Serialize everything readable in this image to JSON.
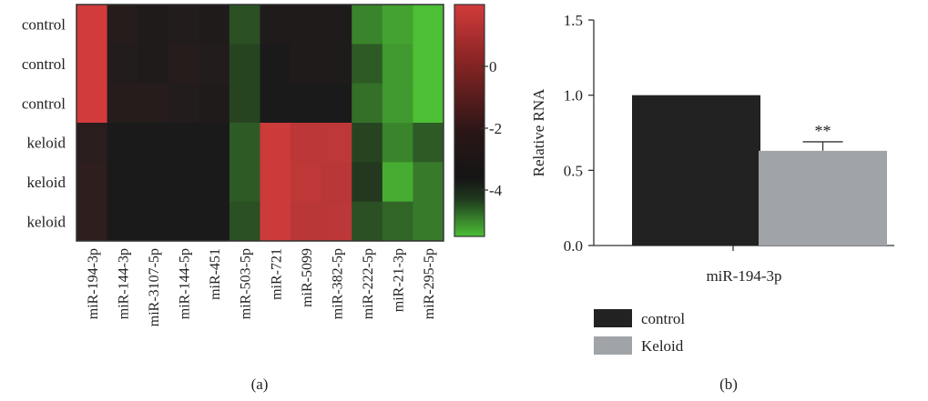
{
  "panel_labels": {
    "a": "(a)",
    "b": "(b)"
  },
  "chart_data": [
    {
      "type": "heatmap",
      "row_labels": [
        "control",
        "control",
        "control",
        "keloid",
        "keloid",
        "keloid"
      ],
      "column_labels": [
        "miR-194-3p",
        "miR-144-3p",
        "miR-3107-5p",
        "miR-144-5p",
        "miR-451",
        "miR-503-5p",
        "miR-721",
        "miR-5099",
        "miR-382-5p",
        "miR-222-5p",
        "miR-21-3p",
        "miR-295-5p"
      ],
      "values": [
        [
          2.0,
          -3.7,
          -3.9,
          -3.8,
          -3.9,
          -4.4,
          -3.9,
          -3.9,
          -3.9,
          -4.9,
          -5.2,
          -6.2
        ],
        [
          2.0,
          -3.8,
          -3.9,
          -3.7,
          -3.8,
          -4.3,
          -4.0,
          -3.9,
          -3.9,
          -4.5,
          -5.1,
          -6.3
        ],
        [
          2.0,
          -3.7,
          -3.7,
          -3.8,
          -3.9,
          -4.3,
          -4.0,
          -4.0,
          -4.0,
          -4.7,
          -5.1,
          -6.2
        ],
        [
          -3.6,
          -4.0,
          -4.0,
          -4.0,
          -4.0,
          -4.5,
          1.8,
          1.2,
          1.3,
          -4.3,
          -4.9,
          -4.5
        ],
        [
          -3.5,
          -4.0,
          -4.0,
          -4.0,
          -4.0,
          -4.5,
          1.8,
          1.3,
          1.1,
          -4.2,
          -5.3,
          -4.8
        ],
        [
          -3.5,
          -4.0,
          -4.0,
          -4.0,
          -4.0,
          -4.4,
          1.8,
          1.1,
          1.2,
          -4.4,
          -4.6,
          -4.8
        ]
      ],
      "colorbar": {
        "range": [
          -5.5,
          2.0
        ],
        "ticks": [
          0,
          -2,
          -4
        ],
        "tick_labels": [
          "0",
          "-2",
          "-4"
        ]
      },
      "colors": {
        "high": "#d23b3b",
        "mid": "#1a1a1a",
        "low": "#4cbf35"
      }
    },
    {
      "type": "bar",
      "categories": [
        "miR-194-3p"
      ],
      "series": [
        {
          "name": "control",
          "values": [
            1.0
          ],
          "error": [
            0
          ]
        },
        {
          "name": "Keloid",
          "values": [
            0.63
          ],
          "error": [
            0.06
          ]
        }
      ],
      "ylabel": "Relative RNA",
      "xlabel": "miR-194-3p",
      "ylim": [
        0,
        1.5
      ],
      "yticks": [
        0.0,
        0.5,
        1.0,
        1.5
      ],
      "ytick_labels": [
        "0.0",
        "0.5",
        "1.0",
        "1.5"
      ],
      "annotation": "**",
      "legend_position": "bottom-left",
      "colors": {
        "control": "#222222",
        "Keloid": "#a0a3a8"
      }
    }
  ]
}
